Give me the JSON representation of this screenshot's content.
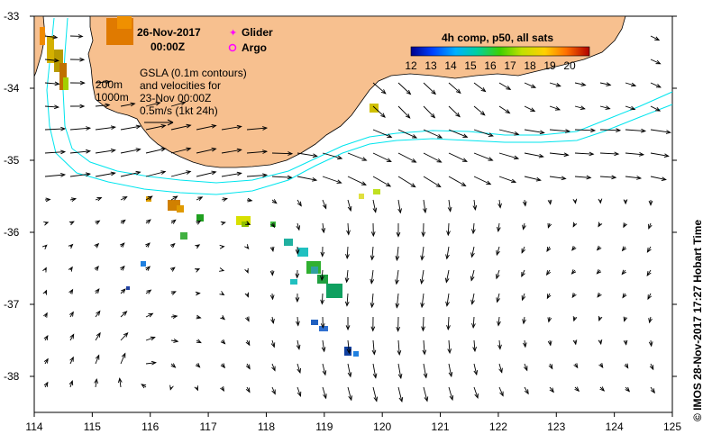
{
  "title": {
    "date": "26-Nov-2017",
    "time": "00:00Z"
  },
  "legend": {
    "glider": "Glider",
    "argo": "Argo",
    "glider_color": "#ff00ff",
    "argo_color": "#ff00ff"
  },
  "notes": {
    "iso200": "200m",
    "iso1000": "1000m",
    "gsla_line1": "GSLA (0.1m contours)",
    "gsla_line2": "and velocities for",
    "gsla_line3": "23-Nov 00:00Z",
    "scale_line": "0.5m/s (1kt 24h)"
  },
  "colorbar": {
    "title": "4h comp, p50, all sats",
    "ticks": [
      "12",
      "13",
      "14",
      "15",
      "16",
      "17",
      "18",
      "19",
      "20"
    ],
    "min": 12,
    "max": 21
  },
  "axes": {
    "lon_ticks": [
      "114",
      "115",
      "116",
      "117",
      "118",
      "119",
      "120",
      "121",
      "122",
      "123",
      "124",
      "125"
    ],
    "lat_ticks": [
      "-33",
      "-34",
      "-35",
      "-36",
      "-37",
      "-38"
    ]
  },
  "credit": "© IMOS 28-Nov-2017 17:27 Hobart Time",
  "colors": {
    "land": "#f7c08f",
    "isobath": "#00e5ee",
    "arrow": "#000000"
  }
}
